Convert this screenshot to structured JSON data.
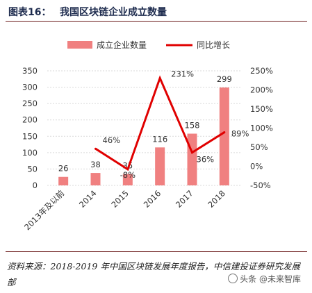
{
  "header": {
    "figure_label": "图表16：",
    "title": "我国区块链企业成立数量"
  },
  "chart_data": {
    "type": "bar+line",
    "categories": [
      "2013年及以前",
      "2014",
      "2015",
      "2016",
      "2017",
      "2018"
    ],
    "series": [
      {
        "name": "成立企业数量",
        "type": "bar",
        "axis": "left",
        "values": [
          26,
          38,
          35,
          116,
          158,
          299
        ],
        "labels": [
          "26",
          "38",
          "35",
          "116",
          "158",
          "299"
        ]
      },
      {
        "name": "同比增长",
        "type": "line",
        "axis": "right",
        "values": [
          null,
          46,
          -8,
          231,
          36,
          89
        ],
        "labels": [
          "",
          "46%",
          "-8%",
          "231%",
          "36%",
          "89%"
        ]
      }
    ],
    "y_left": {
      "min": 0,
      "max": 350,
      "ticks": [
        0,
        50,
        100,
        150,
        200,
        250,
        300,
        350
      ]
    },
    "y_right": {
      "min": -50,
      "max": 250,
      "ticks": [
        "-50%",
        "0%",
        "50%",
        "100%",
        "150%",
        "200%",
        "250%"
      ]
    },
    "legend_position": "top",
    "colors": {
      "bar": "#f08080",
      "line": "#e00000"
    }
  },
  "footer": {
    "source": "资料来源：2018-2019 年中国区块链发展年度报告，中信建投证券研究发展部",
    "watermark": "头条 @未来智库"
  }
}
